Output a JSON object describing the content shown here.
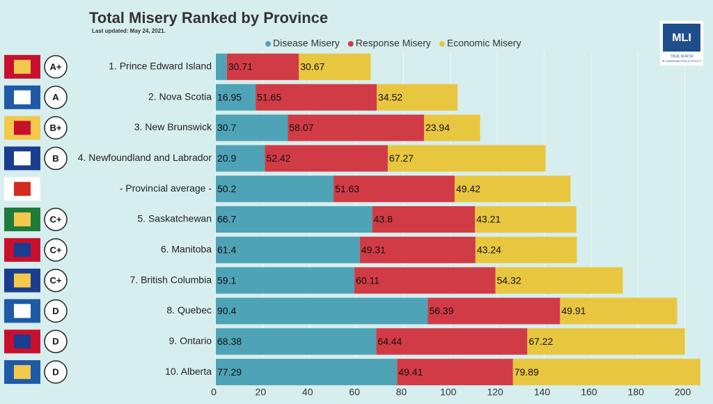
{
  "chart_data": {
    "type": "stacked_barh",
    "title": "Total Misery Ranked by Province",
    "subtitle": "Last updated: May 24, 2021.",
    "categories": [
      "1. Prince Edward Island",
      "2. Nova Scotia",
      "3. New Brunswick",
      "4. Newfoundland and Labrador",
      "- Provincial average -",
      "5. Saskatchewan",
      "6. Manitoba",
      "7. British Columbia",
      "8. Quebec",
      "9. Ontario",
      "10. Alberta"
    ],
    "grades": [
      "A+",
      "A",
      "B+",
      "B",
      null,
      "C+",
      "C+",
      "C+",
      "D",
      "D",
      "D"
    ],
    "series": [
      {
        "name": "Disease Misery",
        "color": "#4fa3b6",
        "values": [
          4.7,
          16.95,
          30.7,
          20.9,
          50.2,
          66.7,
          61.4,
          59.1,
          90.4,
          68.38,
          77.29
        ],
        "value_labels": [
          null,
          "16.95",
          "30.7",
          "20.9",
          "50.2",
          "66.7",
          "61.4",
          "59.1",
          "90.4",
          "68.38",
          "77.29"
        ]
      },
      {
        "name": "Response Misery",
        "color": "#d13b46",
        "values": [
          30.71,
          51.65,
          58.07,
          52.42,
          51.63,
          43.8,
          49.31,
          60.11,
          56.39,
          64.44,
          49.41
        ]
      },
      {
        "name": "Economic Misery",
        "color": "#e8c63f",
        "values": [
          30.67,
          34.52,
          23.94,
          67.27,
          49.42,
          43.21,
          43.24,
          54.32,
          49.91,
          67.22,
          79.89
        ]
      }
    ],
    "xlim": [
      0,
      212
    ],
    "xticks": [
      0,
      20,
      40,
      60,
      80,
      100,
      120,
      140,
      160,
      180,
      200
    ],
    "grid": true,
    "legend": "top",
    "logo": {
      "name": "MLI",
      "tagline": [
        "TRUE NORTH",
        "IN CANADIAN PUBLIC POLICY"
      ]
    }
  }
}
